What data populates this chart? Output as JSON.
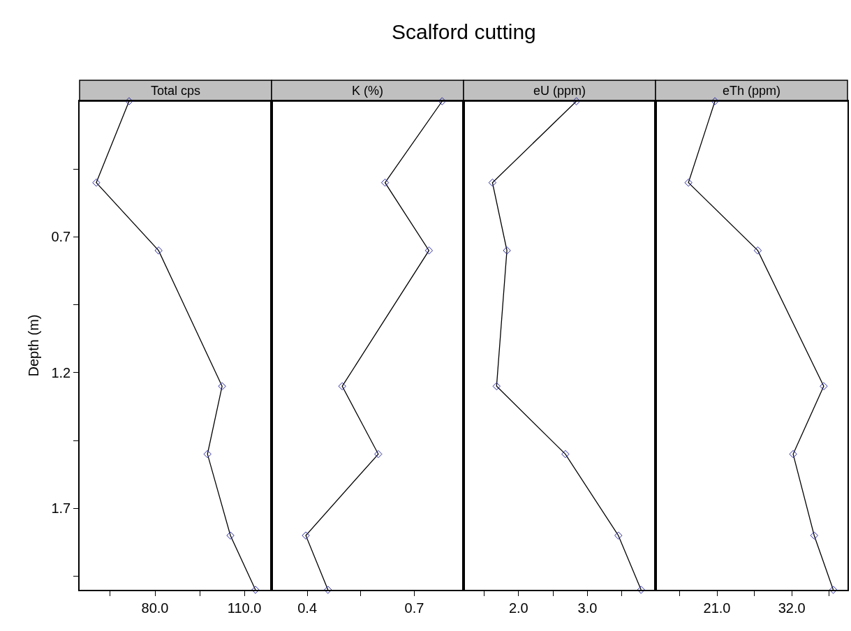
{
  "chart_data": [
    {
      "type": "line",
      "title": "Total cps",
      "ylabel": "Depth (m)",
      "annotations": [
        "Scalford cutting"
      ],
      "marker": "diamond",
      "line_style": "solid",
      "x": [
        71.3,
        60.3,
        81.2,
        102.5,
        97.6,
        105.3,
        113.7
      ],
      "values": [
        0.2,
        0.5,
        0.75,
        1.25,
        1.5,
        1.8,
        2.0
      ],
      "color": "#000000",
      "xlim": [
        54.7,
        119.1
      ],
      "xticks": [
        {
          "value": 65,
          "label": null
        },
        {
          "value": 80,
          "label": "80.0"
        },
        {
          "value": 95,
          "label": null
        },
        {
          "value": 110,
          "label": "110.0"
        }
      ],
      "ylim": [
        2.0,
        0.2
      ],
      "yticks": [
        {
          "value": 0.45,
          "label": null
        },
        0.7,
        {
          "value": 0.95,
          "label": null
        },
        1.2,
        {
          "value": 1.45,
          "label": null
        },
        1.7,
        {
          "value": 1.95,
          "label": null
        }
      ]
    },
    {
      "type": "line",
      "title": "K (%)",
      "marker": "diamond",
      "line_style": "solid",
      "tick_labels": "x",
      "x": [
        0.778,
        0.618,
        0.741,
        0.498,
        0.599,
        0.396,
        0.458
      ],
      "values": [
        0.2,
        0.5,
        0.75,
        1.25,
        1.5,
        1.8,
        2.0
      ],
      "color": "#000000",
      "xlim": [
        0.3,
        0.838
      ],
      "xticks": [
        0.4,
        {
          "value": 0.55,
          "label": null
        },
        0.7
      ],
      "ylim": [
        2.0,
        0.2
      ]
    },
    {
      "type": "line",
      "title": "eU (ppm)",
      "marker": "diamond",
      "line_style": "solid",
      "tick_labels": "x",
      "x": [
        2.84,
        1.62,
        1.83,
        1.68,
        2.68,
        3.45,
        3.78
      ],
      "values": [
        0.2,
        0.5,
        0.75,
        1.25,
        1.5,
        1.8,
        2.0
      ],
      "color": "#000000",
      "xlim": [
        1.2,
        3.99
      ],
      "xticks": [
        {
          "value": 1.5,
          "label": null
        },
        {
          "value": 2,
          "label": "2.0"
        },
        {
          "value": 2.5,
          "label": null
        },
        {
          "value": 3,
          "label": "3.0"
        },
        {
          "value": 3.5,
          "label": null
        }
      ],
      "ylim": [
        2.0,
        0.2
      ]
    },
    {
      "type": "line",
      "title": "eTh (ppm)",
      "marker": "diamond",
      "line_style": "solid",
      "tick_labels": "x",
      "x": [
        20.7,
        16.8,
        27.0,
        36.7,
        32.2,
        35.3,
        38.1
      ],
      "values": [
        0.2,
        0.5,
        0.75,
        1.25,
        1.5,
        1.8,
        2.0
      ],
      "color": "#000000",
      "xlim": [
        11.96,
        40.2
      ],
      "xticks": [
        {
          "value": 15.5,
          "label": null
        },
        {
          "value": 21,
          "label": "21.0"
        },
        {
          "value": 26.5,
          "label": null
        },
        {
          "value": 32,
          "label": "32.0"
        },
        {
          "value": 37.5,
          "label": null
        }
      ],
      "ylim": [
        2.0,
        0.2
      ]
    }
  ]
}
